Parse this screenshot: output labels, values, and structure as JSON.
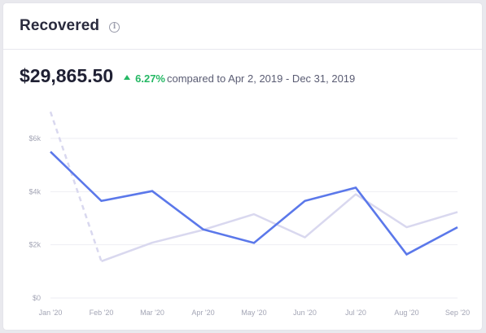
{
  "card": {
    "title": "Recovered",
    "info_icon": "info-icon",
    "amount": "$29,865.50",
    "delta_percent": "6.27%",
    "compare_text": "compared to Apr 2, 2019 - Dec 31, 2019",
    "delta_color": "#25b864"
  },
  "chart_data": {
    "type": "line",
    "categories": [
      "Jan '20",
      "Feb '20",
      "Mar '20",
      "Apr '20",
      "May '20",
      "Jun '20",
      "Jul '20",
      "Aug '20",
      "Sep '20"
    ],
    "yticks": [
      "$0",
      "$2k",
      "$4k",
      "$6k"
    ],
    "ylim": [
      0,
      6000
    ],
    "grid": true,
    "series": [
      {
        "role": "current",
        "color": "#5b78ea",
        "values": [
          5500,
          3650,
          4020,
          2580,
          2070,
          3650,
          4150,
          1640,
          2660
        ]
      },
      {
        "role": "comparison",
        "color": "#d9d8ef",
        "values": [
          null,
          1380,
          2080,
          2560,
          3150,
          2280,
          3900,
          2660,
          3230
        ],
        "lead_in_dashed_from": 7000
      }
    ]
  }
}
